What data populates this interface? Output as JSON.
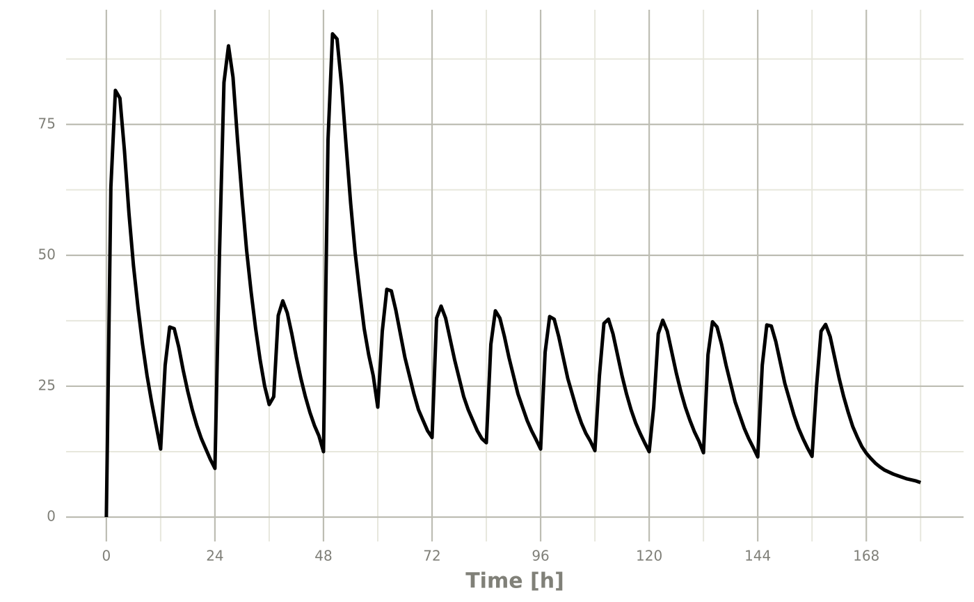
{
  "chart_data": {
    "type": "line",
    "x_label": "Time [h]",
    "x": [
      0,
      1,
      2,
      3,
      4,
      5,
      6,
      7,
      8,
      9,
      10,
      11,
      12,
      13,
      14,
      15,
      16,
      17,
      18,
      19,
      20,
      21,
      22,
      23,
      24,
      25,
      26,
      27,
      28,
      29,
      30,
      31,
      32,
      33,
      34,
      35,
      36,
      37,
      38,
      39,
      40,
      41,
      42,
      43,
      44,
      45,
      46,
      47,
      48,
      49,
      50,
      51,
      52,
      53,
      54,
      55,
      56,
      57,
      58,
      59,
      60,
      61,
      62,
      63,
      64,
      65,
      66,
      67,
      68,
      69,
      70,
      71,
      72,
      73,
      74,
      75,
      76,
      77,
      78,
      79,
      80,
      81,
      82,
      83,
      84,
      85,
      86,
      87,
      88,
      89,
      90,
      91,
      92,
      93,
      94,
      95,
      96,
      97,
      98,
      99,
      100,
      101,
      102,
      103,
      104,
      105,
      106,
      107,
      108,
      109,
      110,
      111,
      112,
      113,
      114,
      115,
      116,
      117,
      118,
      119,
      120,
      121,
      122,
      123,
      124,
      125,
      126,
      127,
      128,
      129,
      130,
      131,
      132,
      133,
      134,
      135,
      136,
      137,
      138,
      139,
      140,
      141,
      142,
      143,
      144,
      145,
      146,
      147,
      148,
      149,
      150,
      151,
      152,
      153,
      154,
      155,
      156,
      157,
      158,
      159,
      160,
      161,
      162,
      163,
      164,
      165,
      166,
      167,
      168,
      169,
      170,
      171,
      172,
      173,
      174,
      175,
      176,
      177,
      178,
      179,
      180
    ],
    "series": [
      {
        "color": "#000000",
        "values": [
          0,
          63,
          81.5,
          80,
          70,
          58,
          48,
          40,
          33,
          27,
          22,
          17.5,
          13,
          29,
          36.3,
          36,
          32.5,
          28,
          24,
          20.5,
          17.5,
          15,
          13,
          11,
          9.3,
          50,
          83,
          90,
          84,
          72,
          61,
          51,
          43,
          36,
          30,
          25,
          21.5,
          23,
          38.5,
          41.3,
          39,
          35,
          30.5,
          26.5,
          23,
          20,
          17.5,
          15.5,
          12.5,
          72,
          92.3,
          91.3,
          82.5,
          71,
          60,
          50.5,
          43,
          36,
          31,
          27,
          21,
          35.5,
          43.5,
          43.2,
          39.5,
          35,
          30.5,
          27,
          23.5,
          20.5,
          18.5,
          16.5,
          15.2,
          38,
          40.3,
          38,
          34,
          30,
          26.5,
          23,
          20.5,
          18.5,
          16.5,
          15,
          14.2,
          33,
          39.4,
          38,
          34.5,
          30.5,
          27,
          23.5,
          21,
          18.5,
          16.5,
          14.8,
          13,
          31.5,
          38.3,
          37.8,
          34.5,
          30.5,
          26.5,
          23.5,
          20.5,
          18,
          16,
          14.5,
          12.7,
          27,
          37,
          37.8,
          35,
          31,
          27,
          23.5,
          20.5,
          18,
          16,
          14.2,
          12.5,
          21,
          35,
          37.6,
          35.5,
          31.5,
          27.5,
          24,
          21,
          18.5,
          16.3,
          14.5,
          12.3,
          31,
          37.3,
          36.3,
          33,
          29,
          25.5,
          22,
          19.5,
          17,
          15,
          13.3,
          11.5,
          29,
          36.7,
          36.5,
          33.5,
          29.5,
          25.5,
          22.5,
          19.5,
          17,
          15,
          13.2,
          11.6,
          25,
          35.5,
          36.8,
          34.5,
          30.5,
          26.5,
          23,
          20,
          17.3,
          15.3,
          13.5,
          12.2,
          11.2,
          10.3,
          9.6,
          9,
          8.6,
          8.2,
          7.9,
          7.6,
          7.3,
          7.1,
          6.9,
          6.6
        ]
      }
    ],
    "xlim": [
      -8.9,
      189.5
    ],
    "ylim": [
      -4.65,
      96.9
    ],
    "xticks": [
      0,
      24,
      48,
      72,
      96,
      120,
      144,
      168
    ],
    "yticks": [
      0,
      25,
      50,
      75
    ],
    "x_minor_grid": [
      12,
      36,
      60,
      84,
      108,
      132,
      156,
      180
    ],
    "y_minor_grid": [
      12.5,
      37.5,
      62.5,
      87.5
    ],
    "grid": true,
    "grid_color": "#bdbdb3",
    "minor_grid_color": "#e7e7dd"
  }
}
